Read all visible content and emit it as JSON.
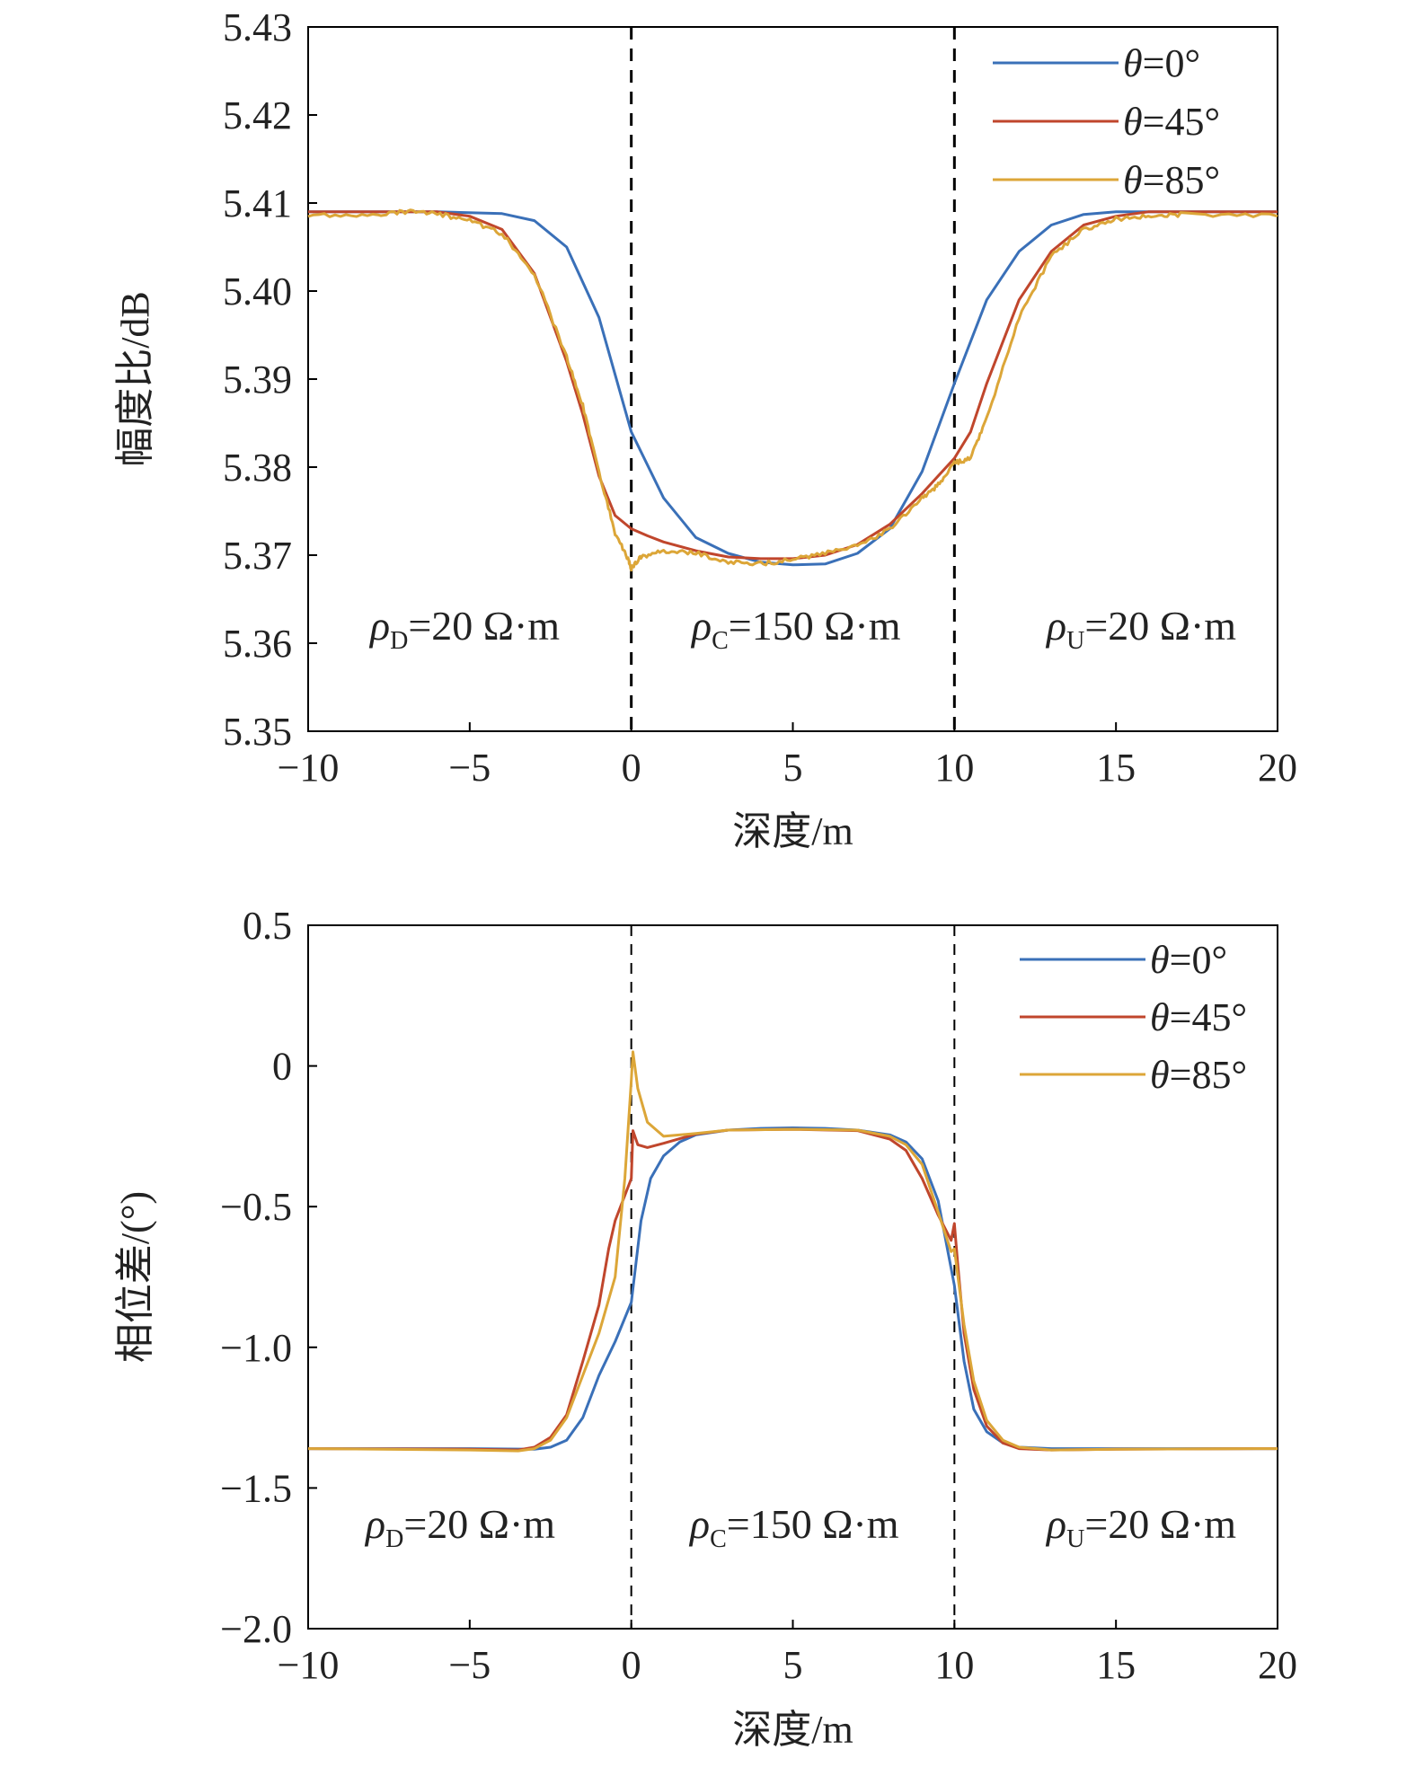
{
  "colors": {
    "theta0": "#3a70b8",
    "theta45": "#c0462c",
    "theta85": "#dca638",
    "axis": "#000000",
    "boundary": "#000000"
  },
  "chart_data": [
    {
      "type": "line",
      "xlabel": "深度/m",
      "ylabel": "幅度比/dB",
      "xlim": [
        -10,
        20
      ],
      "ylim": [
        5.35,
        5.43
      ],
      "xticks": [
        -10,
        -5,
        0,
        5,
        10,
        15,
        20
      ],
      "xtick_labels": [
        "−10",
        "−5",
        "0",
        "5",
        "10",
        "15",
        "20"
      ],
      "yticks": [
        5.35,
        5.36,
        5.37,
        5.38,
        5.39,
        5.4,
        5.41,
        5.42,
        5.43
      ],
      "ytick_labels": [
        "5.35",
        "5.36",
        "5.37",
        "5.38",
        "5.39",
        "5.40",
        "5.41",
        "5.42",
        "5.43"
      ],
      "grid": false,
      "legend_position": "top-right",
      "boundaries": [
        0,
        10
      ],
      "regions": [
        {
          "symbol": "ρ",
          "sub": "D",
          "text": "=20 Ω·m"
        },
        {
          "symbol": "ρ",
          "sub": "C",
          "text": "=150 Ω·m"
        },
        {
          "symbol": "ρ",
          "sub": "U",
          "text": "=20 Ω·m"
        }
      ],
      "series": [
        {
          "name": "θ=0°",
          "legend_symbol": "θ",
          "legend_rest": "=0°",
          "color": "#3a70b8",
          "noisy": false,
          "x": [
            -10,
            -6,
            -4,
            -3,
            -2,
            -1,
            0,
            1,
            2,
            3,
            4,
            5,
            6,
            7,
            8,
            9,
            10,
            11,
            12,
            13,
            14,
            15,
            16,
            20
          ],
          "y": [
            5.409,
            5.409,
            5.4088,
            5.408,
            5.405,
            5.397,
            5.384,
            5.3765,
            5.372,
            5.3702,
            5.3692,
            5.3689,
            5.369,
            5.3702,
            5.373,
            5.3795,
            5.3895,
            5.399,
            5.4045,
            5.4075,
            5.4087,
            5.409,
            5.409,
            5.409
          ]
        },
        {
          "name": "θ=45°",
          "legend_symbol": "θ",
          "legend_rest": "=45°",
          "color": "#c0462c",
          "noisy": false,
          "x": [
            -10,
            -8,
            -7,
            -6,
            -5,
            -4,
            -3,
            -2,
            -1.5,
            -1,
            -0.5,
            0,
            0.5,
            1,
            2,
            3,
            4,
            5,
            6,
            7,
            8,
            9,
            9.5,
            10,
            10.5,
            11,
            12,
            13,
            14,
            15,
            16,
            17,
            20
          ],
          "y": [
            5.409,
            5.409,
            5.409,
            5.409,
            5.4085,
            5.407,
            5.402,
            5.392,
            5.386,
            5.379,
            5.3745,
            5.373,
            5.3722,
            5.3715,
            5.3705,
            5.3698,
            5.3696,
            5.3696,
            5.37,
            5.3712,
            5.3735,
            5.377,
            5.379,
            5.381,
            5.384,
            5.3895,
            5.399,
            5.4045,
            5.4075,
            5.4085,
            5.409,
            5.409,
            5.409
          ]
        },
        {
          "name": "θ=85°",
          "legend_symbol": "θ",
          "legend_rest": "=85°",
          "color": "#dca638",
          "noisy": true,
          "x": [
            -10,
            -8,
            -7,
            -6,
            -5,
            -4,
            -3,
            -2,
            -1.5,
            -1,
            -0.5,
            -0.1,
            0,
            0.3,
            1,
            2,
            3,
            4,
            5,
            6,
            7,
            8,
            9,
            9.5,
            10,
            10.5,
            11,
            12,
            13,
            14,
            15,
            16,
            17,
            20
          ],
          "y": [
            5.4085,
            5.4087,
            5.409,
            5.4088,
            5.408,
            5.4065,
            5.402,
            5.3925,
            5.387,
            5.3795,
            5.3725,
            5.3695,
            5.3685,
            5.3698,
            5.3705,
            5.3703,
            5.3692,
            5.369,
            5.3695,
            5.3702,
            5.371,
            5.373,
            5.3765,
            5.378,
            5.3805,
            5.381,
            5.3855,
            5.397,
            5.404,
            5.407,
            5.4082,
            5.4085,
            5.4087,
            5.4085
          ]
        }
      ]
    },
    {
      "type": "line",
      "xlabel": "深度/m",
      "ylabel": "相位差/(°)",
      "xlim": [
        -10,
        20
      ],
      "ylim": [
        -2.0,
        0.5
      ],
      "xticks": [
        -10,
        -5,
        0,
        5,
        10,
        15,
        20
      ],
      "xtick_labels": [
        "−10",
        "−5",
        "0",
        "5",
        "10",
        "15",
        "20"
      ],
      "yticks": [
        -2.0,
        -1.5,
        -1.0,
        -0.5,
        0,
        0.5
      ],
      "ytick_labels": [
        "−2.0",
        "−1.5",
        "−1.0",
        "−0.5",
        "0",
        "0.5"
      ],
      "grid": false,
      "legend_position": "top-right",
      "boundaries": [
        0,
        10
      ],
      "regions": [
        {
          "symbol": "ρ",
          "sub": "D",
          "text": "=20 Ω·m"
        },
        {
          "symbol": "ρ",
          "sub": "C",
          "text": "=150 Ω·m"
        },
        {
          "symbol": "ρ",
          "sub": "U",
          "text": "=20 Ω·m"
        }
      ],
      "series": [
        {
          "name": "θ=0°",
          "legend_symbol": "θ",
          "legend_rest": "=0°",
          "color": "#3a70b8",
          "noisy": false,
          "x": [
            -10,
            -5,
            -3,
            -2.5,
            -2,
            -1.5,
            -1,
            -0.5,
            0,
            0.3,
            0.6,
            1,
            1.5,
            2,
            3,
            4,
            5,
            6,
            7,
            8,
            8.5,
            9,
            9.5,
            10,
            10.3,
            10.6,
            11,
            11.5,
            12,
            13,
            15,
            20
          ],
          "y": [
            -1.36,
            -1.36,
            -1.362,
            -1.355,
            -1.33,
            -1.25,
            -1.1,
            -0.98,
            -0.84,
            -0.55,
            -0.4,
            -0.32,
            -0.27,
            -0.245,
            -0.228,
            -0.222,
            -0.22,
            -0.222,
            -0.228,
            -0.245,
            -0.27,
            -0.33,
            -0.48,
            -0.78,
            -1.05,
            -1.22,
            -1.3,
            -1.34,
            -1.355,
            -1.36,
            -1.36,
            -1.36
          ]
        },
        {
          "name": "θ=45°",
          "legend_symbol": "θ",
          "legend_rest": "=45°",
          "color": "#c0462c",
          "noisy": false,
          "x": [
            -10,
            -5,
            -3.5,
            -3,
            -2.5,
            -2,
            -1.5,
            -1,
            -0.7,
            -0.5,
            0,
            0.05,
            0.2,
            0.5,
            1,
            2,
            3,
            5,
            7,
            8,
            8.5,
            9,
            9.5,
            9.9,
            10,
            10.1,
            10.3,
            10.6,
            11,
            11.5,
            12,
            13,
            15,
            20
          ],
          "y": [
            -1.36,
            -1.362,
            -1.365,
            -1.355,
            -1.32,
            -1.24,
            -1.05,
            -0.85,
            -0.65,
            -0.55,
            -0.4,
            -0.23,
            -0.28,
            -0.29,
            -0.275,
            -0.242,
            -0.228,
            -0.225,
            -0.23,
            -0.26,
            -0.3,
            -0.4,
            -0.53,
            -0.62,
            -0.56,
            -0.7,
            -0.95,
            -1.15,
            -1.28,
            -1.34,
            -1.36,
            -1.365,
            -1.362,
            -1.36
          ]
        },
        {
          "name": "θ=85°",
          "legend_symbol": "θ",
          "legend_rest": "=85°",
          "color": "#dca638",
          "noisy": false,
          "x": [
            -10,
            -5,
            -3.5,
            -3,
            -2.5,
            -2,
            -1.5,
            -1,
            -0.5,
            -0.2,
            0,
            0.05,
            0.2,
            0.5,
            1,
            2,
            3,
            5,
            7,
            8,
            8.5,
            9,
            9.5,
            9.9,
            10,
            10.3,
            10.6,
            11,
            11.5,
            12,
            13,
            15,
            20
          ],
          "y": [
            -1.36,
            -1.365,
            -1.368,
            -1.36,
            -1.33,
            -1.25,
            -1.1,
            -0.95,
            -0.75,
            -0.4,
            -0.05,
            0.05,
            -0.08,
            -0.2,
            -0.25,
            -0.24,
            -0.228,
            -0.225,
            -0.228,
            -0.25,
            -0.28,
            -0.35,
            -0.52,
            -0.66,
            -0.65,
            -0.92,
            -1.12,
            -1.26,
            -1.33,
            -1.355,
            -1.365,
            -1.362,
            -1.36
          ]
        }
      ]
    }
  ]
}
